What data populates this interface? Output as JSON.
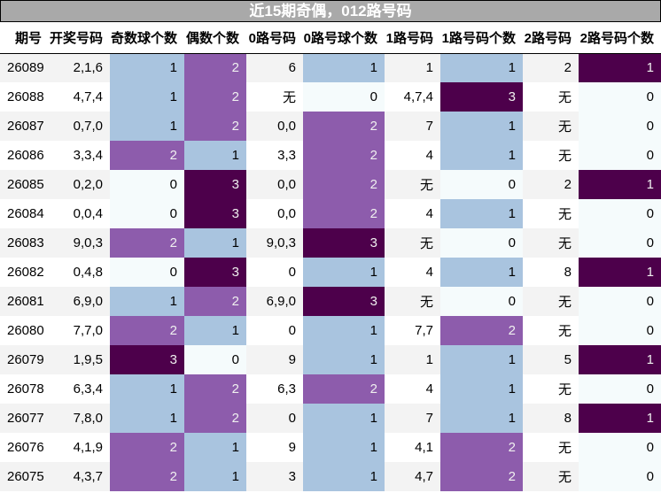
{
  "title": "近15期奇偶，012路号码",
  "headers": [
    "期号",
    "开奖号码",
    "奇数球个数",
    "偶数个数",
    "0路号码",
    "0路号球个数",
    "1路号码",
    "1路号码个数",
    "2路号码",
    "2路号码个数"
  ],
  "count_columns": [
    2,
    3,
    5,
    7,
    9
  ],
  "palette": [
    "#f5fbfc",
    "#a9c4df",
    "#8d5cac",
    "#4d004b"
  ],
  "rows": [
    [
      "26089",
      "2,1,6",
      "1",
      "2",
      "6",
      "1",
      "1",
      "1",
      "2",
      "1"
    ],
    [
      "26088",
      "4,7,4",
      "1",
      "2",
      "无",
      "0",
      "4,7,4",
      "3",
      "无",
      "0"
    ],
    [
      "26087",
      "0,7,0",
      "1",
      "2",
      "0,0",
      "2",
      "7",
      "1",
      "无",
      "0"
    ],
    [
      "26086",
      "3,3,4",
      "2",
      "1",
      "3,3",
      "2",
      "4",
      "1",
      "无",
      "0"
    ],
    [
      "26085",
      "0,2,0",
      "0",
      "3",
      "0,0",
      "2",
      "无",
      "0",
      "2",
      "1"
    ],
    [
      "26084",
      "0,0,4",
      "0",
      "3",
      "0,0",
      "2",
      "4",
      "1",
      "无",
      "0"
    ],
    [
      "26083",
      "9,0,3",
      "2",
      "1",
      "9,0,3",
      "3",
      "无",
      "0",
      "无",
      "0"
    ],
    [
      "26082",
      "0,4,8",
      "0",
      "3",
      "0",
      "1",
      "4",
      "1",
      "8",
      "1"
    ],
    [
      "26081",
      "6,9,0",
      "1",
      "2",
      "6,9,0",
      "3",
      "无",
      "0",
      "无",
      "0"
    ],
    [
      "26080",
      "7,7,0",
      "2",
      "1",
      "0",
      "1",
      "7,7",
      "2",
      "无",
      "0"
    ],
    [
      "26079",
      "1,9,5",
      "3",
      "0",
      "9",
      "1",
      "1",
      "1",
      "5",
      "1"
    ],
    [
      "26078",
      "6,3,4",
      "1",
      "2",
      "6,3",
      "2",
      "4",
      "1",
      "无",
      "0"
    ],
    [
      "26077",
      "7,8,0",
      "1",
      "2",
      "0",
      "1",
      "7",
      "1",
      "8",
      "1"
    ],
    [
      "26076",
      "4,1,9",
      "2",
      "1",
      "9",
      "1",
      "4,1",
      "2",
      "无",
      "0"
    ],
    [
      "26075",
      "4,3,7",
      "2",
      "1",
      "3",
      "1",
      "4,7",
      "2",
      "无",
      "0"
    ]
  ]
}
